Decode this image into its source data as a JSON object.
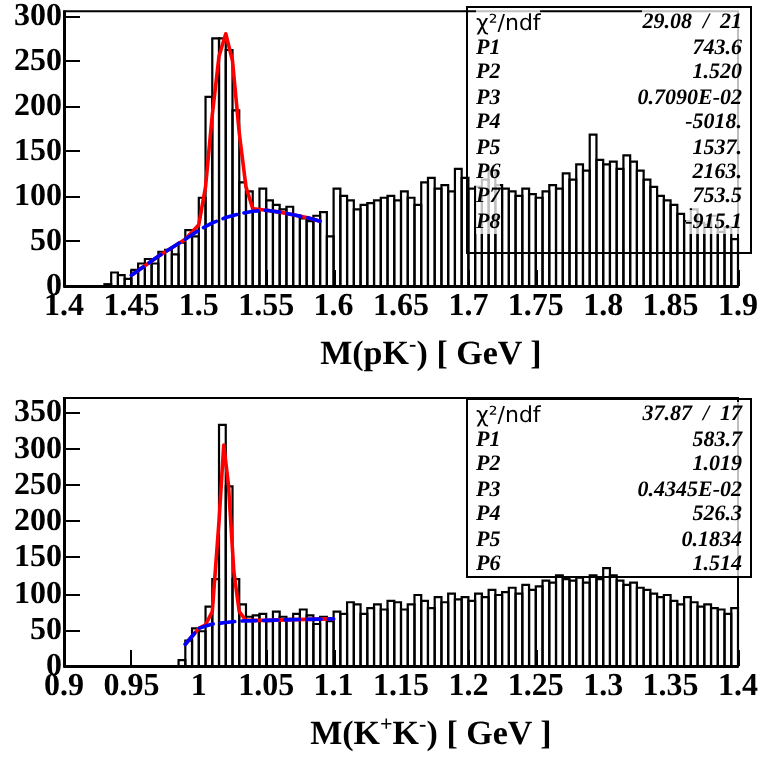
{
  "chart_data": [
    {
      "type": "histogram",
      "xlabel": "M(pK$^{-}$) [ GeV ]",
      "xlim": [
        1.4,
        1.9
      ],
      "xticks": [
        1.4,
        1.45,
        1.5,
        1.55,
        1.6,
        1.65,
        1.7,
        1.75,
        1.8,
        1.85,
        1.9
      ],
      "ylim": [
        0,
        305
      ],
      "yticks": [
        0,
        50,
        100,
        150,
        200,
        250,
        300
      ],
      "annotations": [
        "χ²/ndf 29.08  /  21",
        "P1 743.6",
        "P2 1.520",
        "P3 0.7090E-02",
        "P4 -5018.",
        "P5 1537.",
        "P6 2163.",
        "P7 753.5",
        "P8 -915.1"
      ],
      "series": [
        {
          "type": "histogram",
          "color": "#000000",
          "bins": [
            1.4,
            1.405,
            1.41,
            1.415,
            1.42,
            1.425,
            1.43,
            1.435,
            1.44,
            1.445,
            1.45,
            1.455,
            1.46,
            1.465,
            1.47,
            1.475,
            1.48,
            1.485,
            1.49,
            1.495,
            1.5,
            1.505,
            1.51,
            1.515,
            1.52,
            1.525,
            1.53,
            1.535,
            1.54,
            1.545,
            1.55,
            1.555,
            1.56,
            1.565,
            1.57,
            1.575,
            1.58,
            1.585,
            1.59,
            1.595,
            1.6,
            1.605,
            1.61,
            1.615,
            1.62,
            1.625,
            1.63,
            1.635,
            1.64,
            1.645,
            1.65,
            1.655,
            1.66,
            1.665,
            1.67,
            1.675,
            1.68,
            1.685,
            1.69,
            1.695,
            1.7,
            1.705,
            1.71,
            1.715,
            1.72,
            1.725,
            1.73,
            1.735,
            1.74,
            1.745,
            1.75,
            1.755,
            1.76,
            1.765,
            1.77,
            1.775,
            1.78,
            1.785,
            1.79,
            1.795,
            1.8,
            1.805,
            1.81,
            1.815,
            1.82,
            1.825,
            1.83,
            1.835,
            1.84,
            1.845,
            1.85,
            1.855,
            1.86,
            1.865,
            1.87,
            1.875,
            1.88,
            1.885,
            1.89,
            1.895,
            1.9
          ],
          "values": [
            0,
            0,
            0,
            0,
            0,
            0,
            2,
            15,
            12,
            8,
            18,
            25,
            30,
            25,
            38,
            40,
            35,
            48,
            62,
            55,
            98,
            210,
            275,
            275,
            262,
            195,
            115,
            105,
            85,
            108,
            95,
            90,
            85,
            88,
            78,
            75,
            72,
            78,
            82,
            55,
            108,
            100,
            95,
            85,
            90,
            92,
            95,
            98,
            100,
            95,
            105,
            98,
            90,
            115,
            120,
            108,
            112,
            105,
            130,
            120,
            108,
            110,
            118,
            128,
            112,
            108,
            105,
            100,
            108,
            102,
            98,
            105,
            112,
            108,
            125,
            118,
            135,
            128,
            168,
            140,
            135,
            138,
            130,
            145,
            138,
            128,
            118,
            110,
            100,
            95,
            90,
            80,
            72,
            85,
            70,
            68,
            78,
            60,
            65,
            52
          ]
        },
        {
          "type": "line",
          "color": "#ff0000",
          "line_style": "solid",
          "x": [
            1.45,
            1.47,
            1.49,
            1.5,
            1.505,
            1.51,
            1.515,
            1.52,
            1.525,
            1.53,
            1.535,
            1.54,
            1.55,
            1.56,
            1.57,
            1.58,
            1.59
          ],
          "values": [
            12,
            33,
            52,
            68,
            110,
            190,
            255,
            280,
            250,
            170,
            110,
            86,
            84,
            82,
            79,
            76,
            72
          ]
        },
        {
          "type": "line",
          "color": "#0000ff",
          "line_style": "dashed",
          "x": [
            1.45,
            1.47,
            1.49,
            1.5,
            1.51,
            1.52,
            1.53,
            1.54,
            1.55,
            1.56,
            1.57,
            1.58,
            1.59
          ],
          "values": [
            12,
            33,
            52,
            62,
            70,
            76,
            80,
            83,
            84,
            82,
            79,
            76,
            72
          ]
        }
      ]
    },
    {
      "type": "histogram",
      "xlabel": "M(K$^{+}$K$^{-}$) [ GeV ]",
      "xlim": [
        0.9,
        1.4
      ],
      "xticks": [
        0.9,
        0.95,
        1,
        1.05,
        1.1,
        1.15,
        1.2,
        1.25,
        1.3,
        1.35,
        1.4
      ],
      "ylim": [
        0,
        370
      ],
      "yticks": [
        0,
        50,
        100,
        150,
        200,
        250,
        300,
        350
      ],
      "annotations": [
        "χ²/ndf 37.87  /  17",
        "P1 583.7",
        "P2 1.019",
        "P3 0.4345E-02",
        "P4 526.3",
        "P5 0.1834",
        "P6 1.514"
      ],
      "series": [
        {
          "type": "histogram",
          "color": "#000000",
          "bins": [
            0.9,
            0.905,
            0.91,
            0.915,
            0.92,
            0.925,
            0.93,
            0.935,
            0.94,
            0.945,
            0.95,
            0.955,
            0.96,
            0.965,
            0.97,
            0.975,
            0.98,
            0.985,
            0.99,
            0.995,
            1,
            1.005,
            1.01,
            1.015,
            1.02,
            1.025,
            1.03,
            1.035,
            1.04,
            1.045,
            1.05,
            1.055,
            1.06,
            1.065,
            1.07,
            1.075,
            1.08,
            1.085,
            1.09,
            1.095,
            1.1,
            1.105,
            1.11,
            1.115,
            1.12,
            1.125,
            1.13,
            1.135,
            1.14,
            1.145,
            1.15,
            1.155,
            1.16,
            1.165,
            1.17,
            1.175,
            1.18,
            1.185,
            1.19,
            1.195,
            1.2,
            1.205,
            1.21,
            1.215,
            1.22,
            1.225,
            1.23,
            1.235,
            1.24,
            1.245,
            1.25,
            1.255,
            1.26,
            1.265,
            1.27,
            1.275,
            1.28,
            1.285,
            1.29,
            1.295,
            1.3,
            1.305,
            1.31,
            1.315,
            1.32,
            1.325,
            1.33,
            1.335,
            1.34,
            1.345,
            1.35,
            1.355,
            1.36,
            1.365,
            1.37,
            1.375,
            1.38,
            1.385,
            1.39,
            1.395,
            1.4
          ],
          "values": [
            0,
            0,
            0,
            0,
            0,
            0,
            0,
            0,
            0,
            0,
            0,
            0,
            0,
            0,
            0,
            0,
            0,
            8,
            35,
            52,
            48,
            82,
            120,
            333,
            248,
            120,
            85,
            68,
            70,
            72,
            62,
            75,
            68,
            65,
            72,
            78,
            70,
            58,
            68,
            62,
            75,
            72,
            88,
            85,
            72,
            80,
            85,
            78,
            90,
            88,
            78,
            85,
            98,
            90,
            80,
            95,
            88,
            100,
            92,
            95,
            90,
            100,
            95,
            105,
            98,
            102,
            108,
            100,
            112,
            105,
            110,
            118,
            115,
            125,
            120,
            118,
            122,
            115,
            125,
            120,
            135,
            125,
            118,
            112,
            115,
            108,
            105,
            100,
            95,
            98,
            90,
            85,
            95,
            88,
            82,
            85,
            80,
            78,
            72,
            80
          ]
        },
        {
          "type": "line",
          "color": "#ff0000",
          "line_style": "solid",
          "x": [
            0.99,
            1,
            1.005,
            1.01,
            1.015,
            1.0185,
            1.022,
            1.026,
            1.03,
            1.035,
            1.05,
            1.07,
            1.1
          ],
          "values": [
            30,
            52,
            57,
            75,
            200,
            305,
            250,
            130,
            75,
            63,
            63,
            64,
            65
          ]
        },
        {
          "type": "line",
          "color": "#0000ff",
          "line_style": "dashed",
          "x": [
            0.99,
            1,
            1.01,
            1.02,
            1.03,
            1.05,
            1.07,
            1.1
          ],
          "values": [
            30,
            52,
            58,
            60,
            62,
            63,
            64,
            65
          ]
        }
      ]
    }
  ]
}
